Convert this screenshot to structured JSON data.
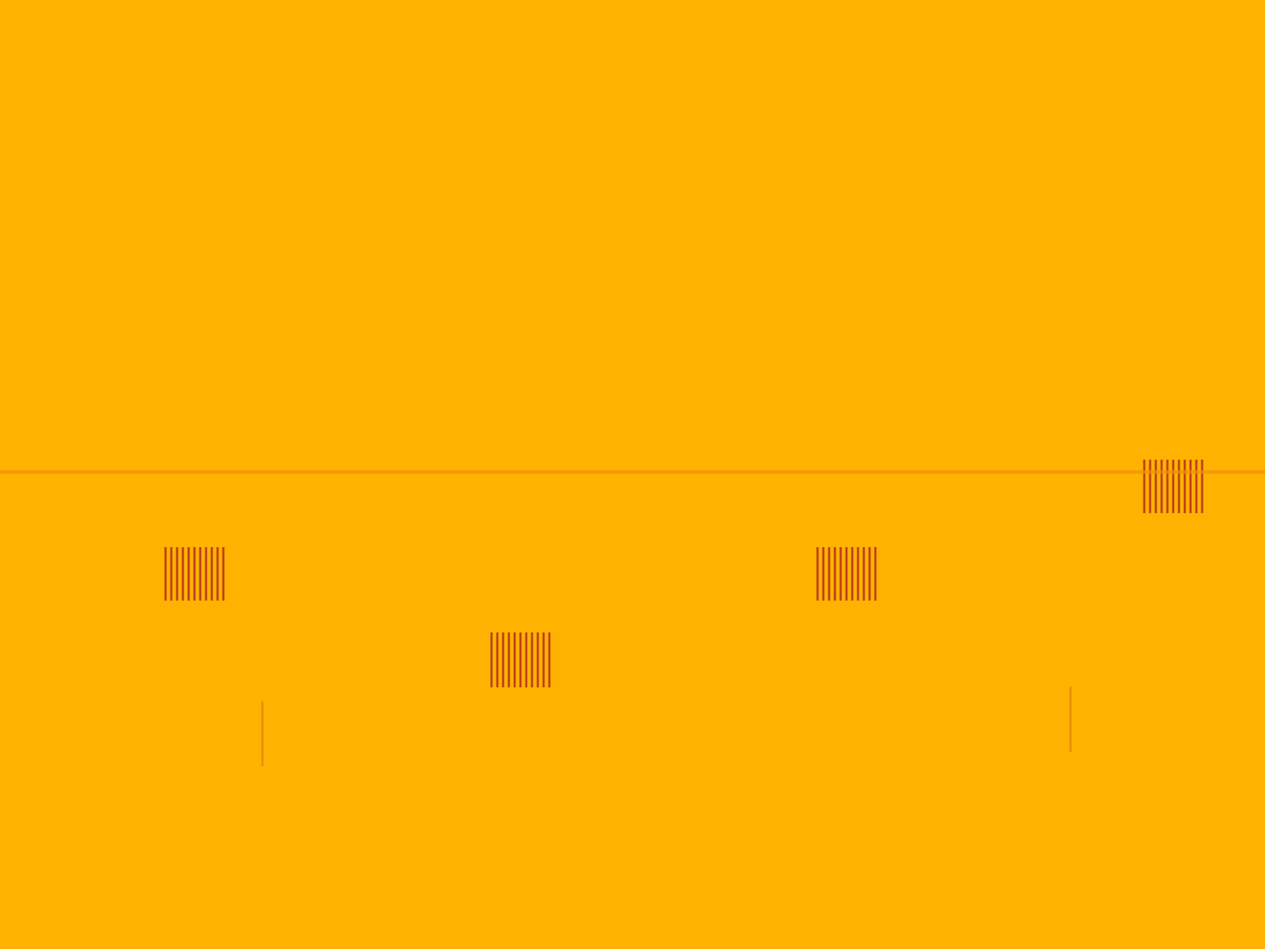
{
  "chart_data": {
    "type": "spectrogram",
    "color": "#ffb300",
    "xlim": [
      0,
      1750
    ],
    "ylim": [
      0,
      1313
    ],
    "xticks": [],
    "yticks": [],
    "grid": false,
    "tick_labels": false,
    "series": [
      {
        "type": "pulse",
        "color": "#b8321c",
        "x": [
          229,
          237,
          245,
          253,
          261,
          269,
          277,
          285,
          293,
          301,
          309,
          680,
          688,
          696,
          704,
          712,
          720,
          728,
          736,
          744,
          752,
          760,
          1131,
          1139,
          1147,
          1155,
          1163,
          1171,
          1179,
          1187,
          1195,
          1203,
          1211,
          1583,
          1591,
          1599,
          1607,
          1615,
          1623,
          1631,
          1639,
          1647,
          1655,
          1663
        ],
        "y_low": [
          482,
          482,
          482,
          482,
          482,
          482,
          482,
          482,
          482,
          482,
          482,
          362,
          362,
          362,
          362,
          362,
          362,
          362,
          362,
          362,
          362,
          362,
          482,
          482,
          482,
          482,
          482,
          482,
          482,
          482,
          482,
          482,
          482,
          603,
          603,
          603,
          603,
          603,
          603,
          603,
          603,
          603,
          603,
          603
        ],
        "y_high": [
          556,
          556,
          556,
          556,
          556,
          556,
          556,
          556,
          556,
          556,
          556,
          438,
          438,
          438,
          438,
          438,
          438,
          438,
          438,
          438,
          438,
          438,
          556,
          556,
          556,
          556,
          556,
          556,
          556,
          556,
          556,
          556,
          556,
          677,
          677,
          677,
          677,
          677,
          677,
          677,
          677,
          677,
          677,
          677
        ]
      },
      {
        "type": "pulse",
        "color": "#e8890e",
        "x": [
          363,
          1481
        ],
        "y_low": [
          253,
          273
        ],
        "y_high": [
          343,
          363
        ]
      },
      {
        "type": "tone",
        "color": "#f0900a",
        "y": 660
      }
    ]
  }
}
